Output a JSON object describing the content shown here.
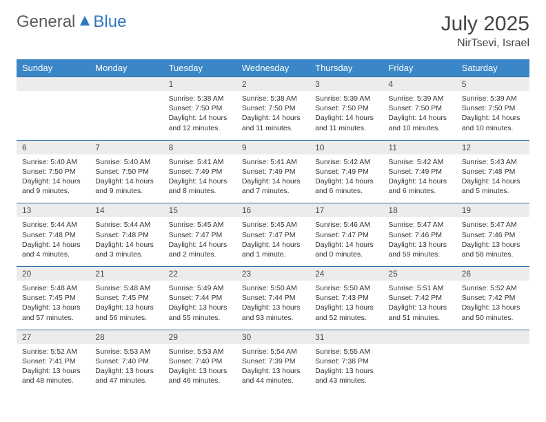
{
  "logo": {
    "text1": "General",
    "text2": "Blue"
  },
  "title": "July 2025",
  "location": "NirTsevi, Israel",
  "dayNames": [
    "Sunday",
    "Monday",
    "Tuesday",
    "Wednesday",
    "Thursday",
    "Friday",
    "Saturday"
  ],
  "colors": {
    "header_bg": "#3b86c6",
    "header_text": "#ffffff",
    "daynum_bg": "#ececec",
    "border": "#2f6fa8",
    "logo_gray": "#5a5a5a",
    "logo_blue": "#2f77bb",
    "body_text": "#333333"
  },
  "weeks": [
    [
      null,
      null,
      {
        "n": "1",
        "sunrise": "5:38 AM",
        "sunset": "7:50 PM",
        "daylight": "14 hours and 12 minutes."
      },
      {
        "n": "2",
        "sunrise": "5:38 AM",
        "sunset": "7:50 PM",
        "daylight": "14 hours and 11 minutes."
      },
      {
        "n": "3",
        "sunrise": "5:39 AM",
        "sunset": "7:50 PM",
        "daylight": "14 hours and 11 minutes."
      },
      {
        "n": "4",
        "sunrise": "5:39 AM",
        "sunset": "7:50 PM",
        "daylight": "14 hours and 10 minutes."
      },
      {
        "n": "5",
        "sunrise": "5:39 AM",
        "sunset": "7:50 PM",
        "daylight": "14 hours and 10 minutes."
      }
    ],
    [
      {
        "n": "6",
        "sunrise": "5:40 AM",
        "sunset": "7:50 PM",
        "daylight": "14 hours and 9 minutes."
      },
      {
        "n": "7",
        "sunrise": "5:40 AM",
        "sunset": "7:50 PM",
        "daylight": "14 hours and 9 minutes."
      },
      {
        "n": "8",
        "sunrise": "5:41 AM",
        "sunset": "7:49 PM",
        "daylight": "14 hours and 8 minutes."
      },
      {
        "n": "9",
        "sunrise": "5:41 AM",
        "sunset": "7:49 PM",
        "daylight": "14 hours and 7 minutes."
      },
      {
        "n": "10",
        "sunrise": "5:42 AM",
        "sunset": "7:49 PM",
        "daylight": "14 hours and 6 minutes."
      },
      {
        "n": "11",
        "sunrise": "5:42 AM",
        "sunset": "7:49 PM",
        "daylight": "14 hours and 6 minutes."
      },
      {
        "n": "12",
        "sunrise": "5:43 AM",
        "sunset": "7:48 PM",
        "daylight": "14 hours and 5 minutes."
      }
    ],
    [
      {
        "n": "13",
        "sunrise": "5:44 AM",
        "sunset": "7:48 PM",
        "daylight": "14 hours and 4 minutes."
      },
      {
        "n": "14",
        "sunrise": "5:44 AM",
        "sunset": "7:48 PM",
        "daylight": "14 hours and 3 minutes."
      },
      {
        "n": "15",
        "sunrise": "5:45 AM",
        "sunset": "7:47 PM",
        "daylight": "14 hours and 2 minutes."
      },
      {
        "n": "16",
        "sunrise": "5:45 AM",
        "sunset": "7:47 PM",
        "daylight": "14 hours and 1 minute."
      },
      {
        "n": "17",
        "sunrise": "5:46 AM",
        "sunset": "7:47 PM",
        "daylight": "14 hours and 0 minutes."
      },
      {
        "n": "18",
        "sunrise": "5:47 AM",
        "sunset": "7:46 PM",
        "daylight": "13 hours and 59 minutes."
      },
      {
        "n": "19",
        "sunrise": "5:47 AM",
        "sunset": "7:46 PM",
        "daylight": "13 hours and 58 minutes."
      }
    ],
    [
      {
        "n": "20",
        "sunrise": "5:48 AM",
        "sunset": "7:45 PM",
        "daylight": "13 hours and 57 minutes."
      },
      {
        "n": "21",
        "sunrise": "5:48 AM",
        "sunset": "7:45 PM",
        "daylight": "13 hours and 56 minutes."
      },
      {
        "n": "22",
        "sunrise": "5:49 AM",
        "sunset": "7:44 PM",
        "daylight": "13 hours and 55 minutes."
      },
      {
        "n": "23",
        "sunrise": "5:50 AM",
        "sunset": "7:44 PM",
        "daylight": "13 hours and 53 minutes."
      },
      {
        "n": "24",
        "sunrise": "5:50 AM",
        "sunset": "7:43 PM",
        "daylight": "13 hours and 52 minutes."
      },
      {
        "n": "25",
        "sunrise": "5:51 AM",
        "sunset": "7:42 PM",
        "daylight": "13 hours and 51 minutes."
      },
      {
        "n": "26",
        "sunrise": "5:52 AM",
        "sunset": "7:42 PM",
        "daylight": "13 hours and 50 minutes."
      }
    ],
    [
      {
        "n": "27",
        "sunrise": "5:52 AM",
        "sunset": "7:41 PM",
        "daylight": "13 hours and 48 minutes."
      },
      {
        "n": "28",
        "sunrise": "5:53 AM",
        "sunset": "7:40 PM",
        "daylight": "13 hours and 47 minutes."
      },
      {
        "n": "29",
        "sunrise": "5:53 AM",
        "sunset": "7:40 PM",
        "daylight": "13 hours and 46 minutes."
      },
      {
        "n": "30",
        "sunrise": "5:54 AM",
        "sunset": "7:39 PM",
        "daylight": "13 hours and 44 minutes."
      },
      {
        "n": "31",
        "sunrise": "5:55 AM",
        "sunset": "7:38 PM",
        "daylight": "13 hours and 43 minutes."
      },
      null,
      null
    ]
  ],
  "labels": {
    "sunrise": "Sunrise: ",
    "sunset": "Sunset: ",
    "daylight": "Daylight: "
  }
}
